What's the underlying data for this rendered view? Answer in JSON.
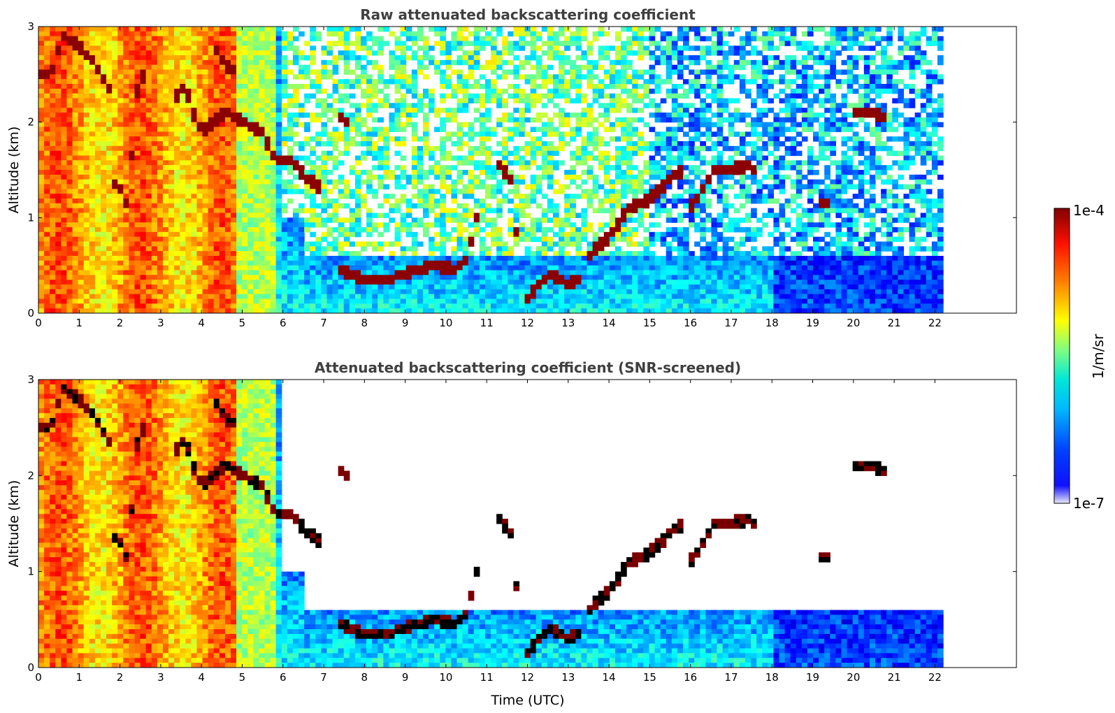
{
  "chart_data": [
    {
      "type": "heatmap",
      "title": "Raw attenuated backscattering coefficient",
      "xlabel": "",
      "ylabel": "Altitude (km)",
      "xlim": [
        0,
        24
      ],
      "ylim": [
        0,
        3
      ],
      "xticks": [
        "0",
        "1",
        "2",
        "3",
        "4",
        "5",
        "6",
        "7",
        "8",
        "9",
        "10",
        "11",
        "12",
        "13",
        "14",
        "15",
        "16",
        "17",
        "18",
        "19",
        "20",
        "21",
        "22"
      ],
      "yticks": [
        "0",
        "1",
        "2",
        "3"
      ],
      "data_end_time": 22.2,
      "colormap": "jet",
      "color_scale": "log",
      "clim": [
        1e-07,
        0.0001
      ],
      "cloud_layers": [
        {
          "t": [
            0.0,
            0.3,
            0.6,
            1.0,
            1.4,
            1.8
          ],
          "alt": [
            2.5,
            2.5,
            2.9,
            2.8,
            2.6,
            2.3
          ]
        },
        {
          "t": [
            1.8,
            2.0,
            2.2,
            2.4,
            2.6
          ],
          "alt": [
            1.4,
            1.3,
            1.1,
            2.3,
            2.5
          ]
        },
        {
          "t": [
            3.3,
            3.6,
            3.8,
            4.0,
            4.3,
            4.6,
            5.0,
            5.5,
            5.8,
            6.2,
            6.6,
            7.0
          ],
          "alt": [
            2.2,
            2.4,
            2.1,
            1.9,
            2.0,
            2.1,
            2.0,
            1.9,
            1.6,
            1.6,
            1.4,
            1.3
          ]
        },
        {
          "t": [
            4.3,
            4.6,
            4.9
          ],
          "alt": [
            2.8,
            2.6,
            2.5
          ]
        },
        {
          "t": [
            7.3,
            7.6
          ],
          "alt": [
            2.1,
            2.0
          ]
        },
        {
          "t": [
            7.4,
            8.0,
            8.6,
            9.2,
            9.8,
            10.2,
            10.5,
            10.8
          ],
          "alt": [
            0.45,
            0.35,
            0.35,
            0.45,
            0.5,
            0.45,
            0.55,
            1.1
          ]
        },
        {
          "t": [
            11.2,
            11.4,
            11.6,
            11.8
          ],
          "alt": [
            1.6,
            1.5,
            1.4,
            0.5
          ]
        },
        {
          "t": [
            12.0,
            12.3,
            12.6,
            13.0,
            13.3
          ],
          "alt": [
            0.15,
            0.3,
            0.4,
            0.3,
            0.35
          ]
        },
        {
          "t": [
            13.5,
            14.0,
            14.5,
            15.0,
            15.5,
            15.8
          ],
          "alt": [
            0.6,
            0.8,
            1.1,
            1.2,
            1.4,
            1.5
          ]
        },
        {
          "t": [
            16.0,
            16.3,
            16.6,
            17.0,
            17.4,
            17.6
          ],
          "alt": [
            1.1,
            1.3,
            1.5,
            1.5,
            1.55,
            1.5
          ]
        },
        {
          "t": [
            19.1,
            19.4
          ],
          "alt": [
            1.15,
            1.15
          ]
        },
        {
          "t": [
            20.0,
            20.4,
            20.8
          ],
          "alt": [
            2.1,
            2.1,
            2.05
          ]
        }
      ]
    },
    {
      "type": "heatmap",
      "title": "Attenuated backscattering coefficient (SNR-screened)",
      "xlabel": "Time (UTC)",
      "ylabel": "Altitude (km)",
      "xlim": [
        0,
        24
      ],
      "ylim": [
        0,
        3
      ],
      "xticks": [
        "0",
        "1",
        "2",
        "3",
        "4",
        "5",
        "6",
        "7",
        "8",
        "9",
        "10",
        "11",
        "12",
        "13",
        "14",
        "15",
        "16",
        "17",
        "18",
        "19",
        "20",
        "21",
        "22"
      ],
      "yticks": [
        "0",
        "1",
        "2",
        "3"
      ],
      "data_end_time": 22.2,
      "colormap": "jet",
      "color_scale": "log",
      "clim": [
        1e-07,
        0.0001
      ],
      "screened_regions": "noisy pixels removed (white)"
    }
  ],
  "colorbar": {
    "label": "1/m/sr",
    "max_label": "1e-4",
    "min_label": "1e-7",
    "colors": [
      "#e8e8f8",
      "#0000ff",
      "#00bfff",
      "#00e0c0",
      "#80ff80",
      "#ffff00",
      "#ff8000",
      "#ff0000",
      "#800000"
    ]
  }
}
